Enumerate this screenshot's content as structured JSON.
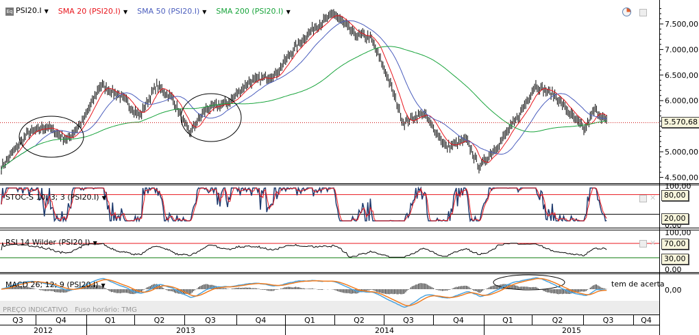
{
  "legend": {
    "symbol": "PSI20.I",
    "sma20": "SMA 20 (PSI20.I)",
    "sma50": "SMA 50 (PSI20.I)",
    "sma200": "SMA 200 (PSI20.I)",
    "symbol_icon": "Eq"
  },
  "colors": {
    "price": "#000000",
    "sma20": "#e8141b",
    "sma50": "#4a5dbd",
    "sma200": "#17a33a",
    "macd": "#4aa3df",
    "signal": "#f07b1e",
    "overbought": "#e8141b",
    "oversold_rsi": "#0a7a0a"
  },
  "panels": {
    "stoch": "STOC-S 10; 3; 3 (PSI20.I)",
    "rsi": "RSI 14 Wilder (PSI20.I)",
    "macd": "MACD 26; 12; 9 (PSI20.I)",
    "macd_overlay_text": "tem de acerta"
  },
  "footer": {
    "price_note": "PREÇO INDICATIVO",
    "timezone": "Fuso horário: TMG"
  },
  "tags": {
    "last_price": "5.570,68",
    "stoch_high": "80,00",
    "stoch_low": "20,00",
    "rsi_high": "70,00",
    "rsi_low": "30,00"
  },
  "chart_data": {
    "type": "line",
    "y_axis": {
      "ticks": [
        "7.500,00",
        "7.000,00",
        "6.500,00",
        "6.000,00",
        "5.000,00",
        "4.500,00"
      ],
      "values": [
        7500,
        7000,
        6500,
        6000,
        5000,
        4500
      ],
      "range": [
        4450,
        7850
      ]
    },
    "stoch_axis": [
      "100,00",
      "0,00"
    ],
    "rsi_axis": [
      "100,00",
      "0,00"
    ],
    "macd_axis": [
      "0,00"
    ],
    "quarters": [
      "Q3",
      "Q4",
      "Q1",
      "Q2",
      "Q3",
      "Q4",
      "Q1",
      "Q2",
      "Q3",
      "Q4",
      "Q1",
      "Q2",
      "Q3",
      "Q4"
    ],
    "years": [
      "2012",
      "2013",
      "2014",
      "2015"
    ],
    "price_t": [
      0,
      0.04,
      0.07,
      0.1,
      0.125,
      0.15,
      0.18,
      0.21,
      0.235,
      0.26,
      0.285,
      0.31,
      0.345,
      0.375,
      0.415,
      0.445,
      0.475,
      0.505,
      0.535,
      0.56,
      0.585,
      0.61,
      0.64,
      0.675,
      0.705,
      0.725,
      0.755,
      0.785,
      0.81,
      0.84,
      0.865,
      0.885,
      0.9,
      0.92
    ],
    "price": [
      4700,
      5360,
      5490,
      5230,
      5630,
      6300,
      6100,
      5700,
      6300,
      6030,
      5360,
      5830,
      5960,
      6360,
      6500,
      7030,
      7430,
      7700,
      7300,
      7230,
      6500,
      5560,
      5760,
      5090,
      5230,
      4700,
      5160,
      5700,
      6300,
      6100,
      5700,
      5430,
      5830,
      5570
    ],
    "last": 5570.68
  }
}
